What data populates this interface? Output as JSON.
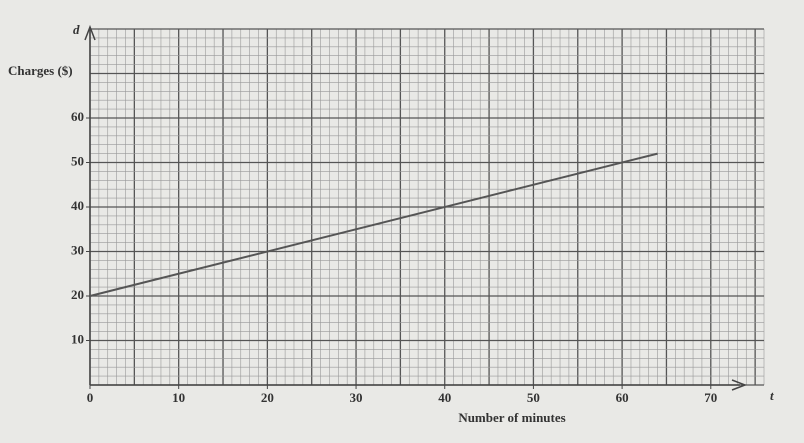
{
  "chart_data": {
    "type": "line",
    "x_axis_symbol": "t",
    "y_axis_symbol": "d",
    "y_label": "Charges ($)",
    "x_label": "Number of minutes",
    "x": [
      0,
      64
    ],
    "series": [
      {
        "color": "#555555",
        "values": [
          20,
          52
        ]
      }
    ],
    "xlim": [
      0,
      76
    ],
    "ylim": [
      0,
      80
    ],
    "xticks": [
      0,
      10,
      20,
      30,
      40,
      50,
      60,
      70
    ],
    "yticks": [
      10,
      20,
      30,
      40,
      50,
      60
    ],
    "grid": {
      "x_major": 5,
      "x_minor": 1,
      "y_major": 10,
      "y_minor": 2
    }
  }
}
